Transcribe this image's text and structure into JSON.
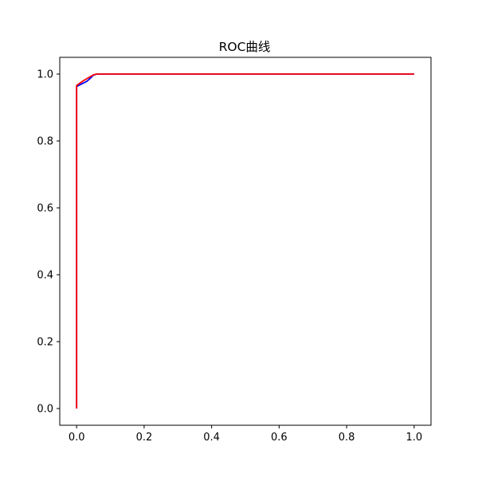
{
  "chart_data": {
    "type": "line",
    "title": "ROC曲线",
    "xlabel": "",
    "ylabel": "",
    "xlim": [
      -0.05,
      1.05
    ],
    "ylim": [
      -0.05,
      1.05
    ],
    "xticks": [
      0.0,
      0.2,
      0.4,
      0.6,
      0.8,
      1.0
    ],
    "yticks": [
      0.0,
      0.2,
      0.4,
      0.6,
      0.8,
      1.0
    ],
    "xtick_labels": [
      "0.0",
      "0.2",
      "0.4",
      "0.6",
      "0.8",
      "1.0"
    ],
    "ytick_labels": [
      "0.0",
      "0.2",
      "0.4",
      "0.6",
      "0.8",
      "1.0"
    ],
    "grid": false,
    "legend": false,
    "series": [
      {
        "color": "#0000ff",
        "x": [
          0.0,
          0.0,
          0.0,
          0.01,
          0.02,
          0.03,
          0.04,
          0.05,
          0.06,
          1.0
        ],
        "y": [
          0.0,
          0.96,
          0.963,
          0.968,
          0.973,
          0.978,
          0.987,
          0.997,
          1.0,
          1.0
        ]
      },
      {
        "color": "#ff0000",
        "x": [
          0.0,
          0.0,
          0.0,
          0.01,
          0.02,
          0.03,
          0.04,
          0.05,
          0.06,
          1.0
        ],
        "y": [
          0.0,
          0.96,
          0.966,
          0.973,
          0.98,
          0.986,
          0.992,
          0.998,
          1.0,
          1.0
        ]
      }
    ]
  }
}
